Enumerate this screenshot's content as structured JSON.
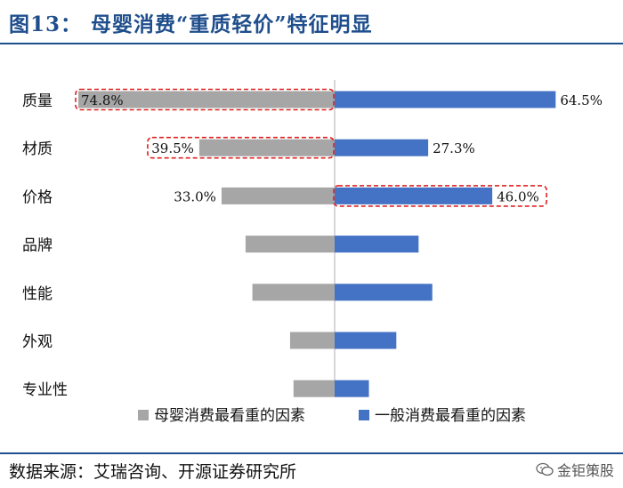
{
  "header": {
    "figure_number": "图13：",
    "title": "母婴消费“重质轻价”特征明显"
  },
  "chart_data": {
    "type": "bar",
    "orientation": "horizontal-diverging",
    "categories": [
      "质量",
      "材质",
      "价格",
      "品牌",
      "性能",
      "外观",
      "专业性"
    ],
    "series": [
      {
        "name": "母婴消费最看重的因素",
        "color": "#a6a6a6",
        "side": "left",
        "values": [
          74.8,
          39.5,
          33.0,
          26.0,
          24.0,
          13.0,
          12.0
        ],
        "labels": [
          "74.8%",
          "39.5%",
          "33.0%",
          "",
          "",
          "",
          ""
        ]
      },
      {
        "name": "一般消费最看重的因素",
        "color": "#4472c4",
        "side": "right",
        "values": [
          64.5,
          27.3,
          46.0,
          24.5,
          28.5,
          18.0,
          10.0
        ],
        "labels": [
          "64.5%",
          "27.3%",
          "46.0%",
          "",
          "",
          "",
          ""
        ]
      }
    ],
    "highlighted": [
      {
        "series": 0,
        "category": "质量"
      },
      {
        "series": 0,
        "category": "材质"
      },
      {
        "series": 1,
        "category": "价格"
      }
    ],
    "xlim": [
      -80,
      80
    ],
    "grid": false,
    "legend": "bottom",
    "highlight_color": "#e02020"
  },
  "footer": {
    "source": "数据来源：艾瑞咨询、开源证券研究所",
    "watermark": "金钜策股",
    "watermark_icon": "wechat-icon"
  }
}
